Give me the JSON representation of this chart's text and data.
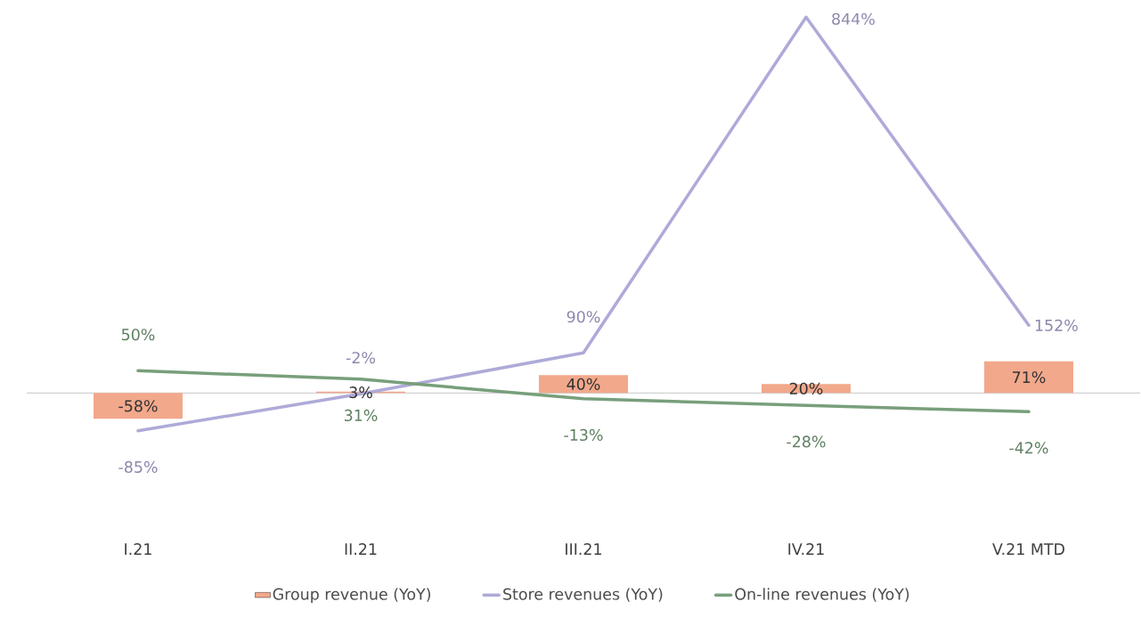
{
  "chart_data": {
    "type": "bar",
    "categories": [
      "I.21",
      "II.21",
      "III.21",
      "IV.21",
      "V.21 MTD"
    ],
    "series": [
      {
        "name": "Group revenue (YoY)",
        "color": "#f2a88b",
        "values": [
          -58,
          3,
          40,
          20,
          71
        ],
        "value_labels": [
          "-58%",
          "3%",
          "40%",
          "20%",
          "71%"
        ]
      },
      {
        "name": "Store revenues (YoY)",
        "type": "line",
        "color": "#aeaad8",
        "values": [
          -85,
          -2,
          90,
          844,
          152
        ],
        "value_labels": [
          "-85%",
          "-2%",
          "90%",
          "844%",
          "152%"
        ]
      },
      {
        "name": "On-line revenues (YoY)",
        "type": "line",
        "color": "#789f7b",
        "values": [
          50,
          31,
          -13,
          -28,
          -42
        ],
        "value_labels": [
          "50%",
          "31%",
          "-13%",
          "-28%",
          "-42%"
        ]
      }
    ],
    "legend": "bottom",
    "grid": false,
    "marker": "none",
    "line_style": "solid"
  }
}
